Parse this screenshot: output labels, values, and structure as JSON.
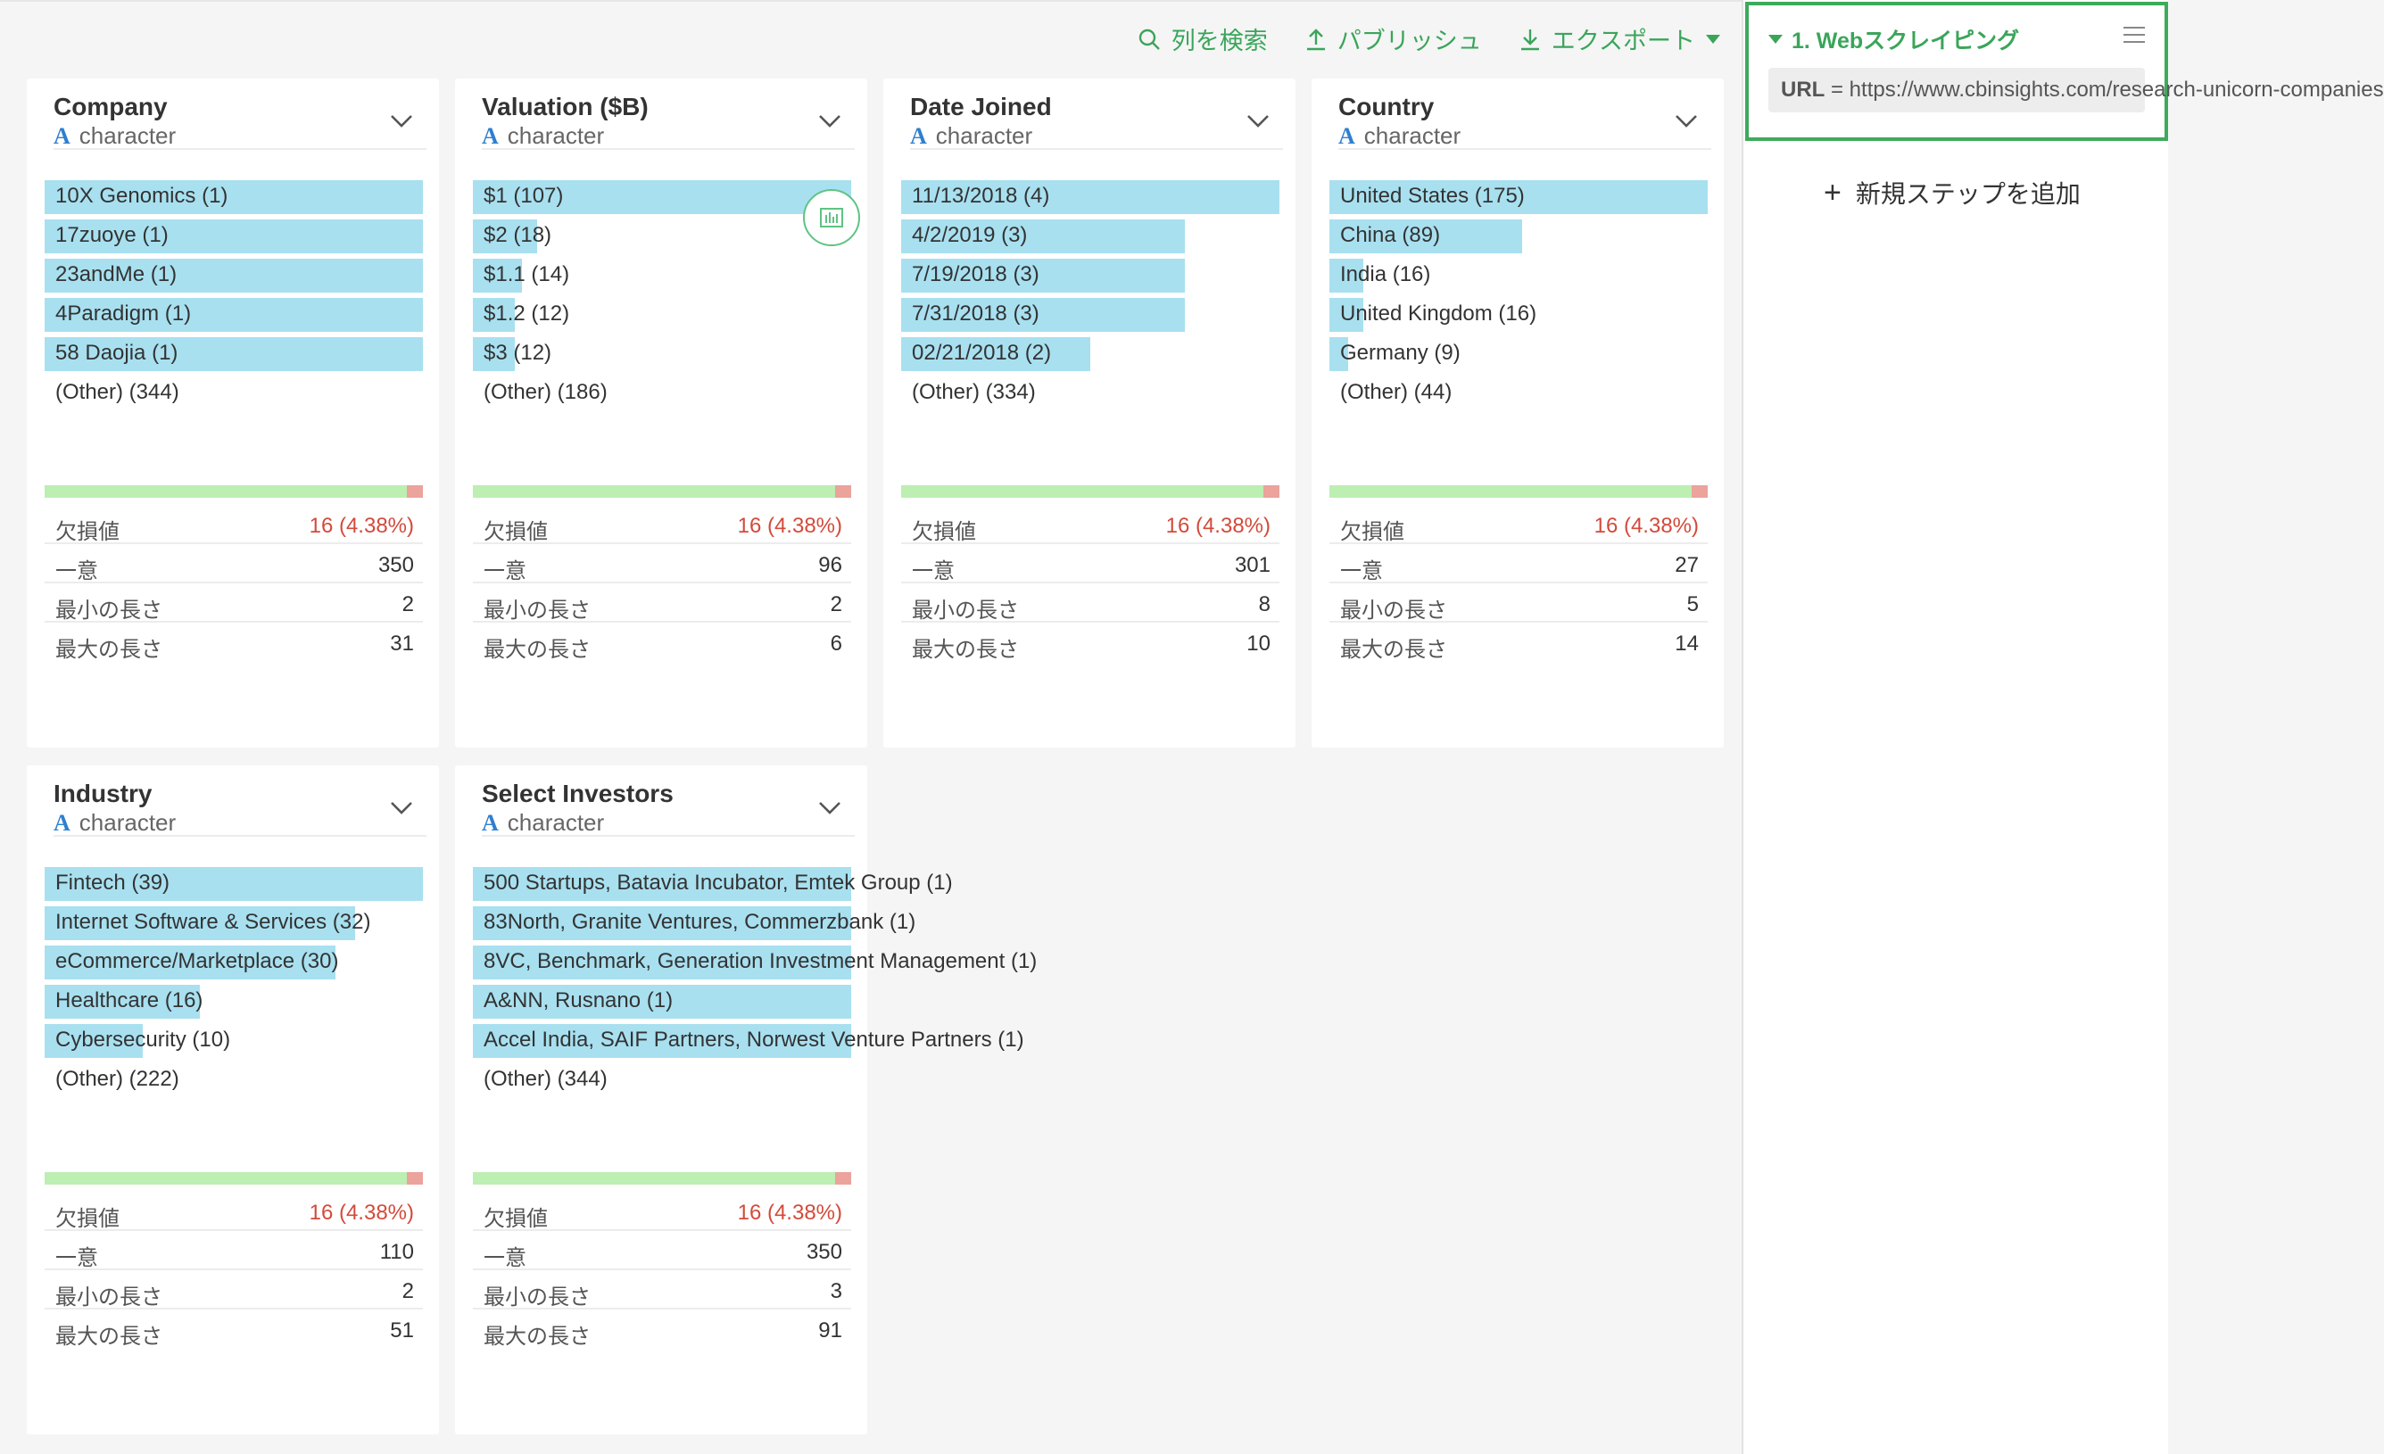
{
  "toolbar": {
    "search_label": "列を検索",
    "publish_label": "パブリッシュ",
    "export_label": "エクスポート"
  },
  "colors": {
    "accent": "#3aa55a",
    "bar": "#a8e0f0",
    "missing": "#d34a3b",
    "type_icon": "#2f7fd0"
  },
  "stat_labels": {
    "missing": "欠損値",
    "unique": "一意",
    "min_len": "最小の長さ",
    "max_len": "最大の長さ"
  },
  "columns": [
    {
      "name": "Company",
      "type_glyph": "A",
      "type": "character",
      "bars": [
        {
          "label": "10X Genomics (1)",
          "fraction": 1.0
        },
        {
          "label": "17zuoye (1)",
          "fraction": 1.0
        },
        {
          "label": "23andMe (1)",
          "fraction": 1.0
        },
        {
          "label": "4Paradigm (1)",
          "fraction": 1.0
        },
        {
          "label": "58 Daojia (1)",
          "fraction": 1.0
        }
      ],
      "other": "(Other) (344)",
      "missing": "16 (4.38%)",
      "unique": "350",
      "min_len": "2",
      "max_len": "31"
    },
    {
      "name": "Valuation ($B)",
      "type_glyph": "A",
      "type": "character",
      "bars": [
        {
          "label": "$1 (107)",
          "fraction": 1.0
        },
        {
          "label": "$2 (18)",
          "fraction": 0.17
        },
        {
          "label": "$1.1 (14)",
          "fraction": 0.13
        },
        {
          "label": "$1.2 (12)",
          "fraction": 0.11
        },
        {
          "label": "$3 (12)",
          "fraction": 0.11
        }
      ],
      "other": "(Other) (186)",
      "missing": "16 (4.38%)",
      "unique": "96",
      "min_len": "2",
      "max_len": "6"
    },
    {
      "name": "Date Joined",
      "type_glyph": "A",
      "type": "character",
      "bars": [
        {
          "label": "11/13/2018 (4)",
          "fraction": 1.0
        },
        {
          "label": "4/2/2019 (3)",
          "fraction": 0.75
        },
        {
          "label": "7/19/2018 (3)",
          "fraction": 0.75
        },
        {
          "label": "7/31/2018 (3)",
          "fraction": 0.75
        },
        {
          "label": "02/21/2018 (2)",
          "fraction": 0.5
        }
      ],
      "other": "(Other) (334)",
      "missing": "16 (4.38%)",
      "unique": "301",
      "min_len": "8",
      "max_len": "10"
    },
    {
      "name": "Country",
      "type_glyph": "A",
      "type": "character",
      "bars": [
        {
          "label": "United States (175)",
          "fraction": 1.0
        },
        {
          "label": "China (89)",
          "fraction": 0.51
        },
        {
          "label": "India (16)",
          "fraction": 0.09
        },
        {
          "label": "United Kingdom (16)",
          "fraction": 0.09
        },
        {
          "label": "Germany (9)",
          "fraction": 0.05
        }
      ],
      "other": "(Other) (44)",
      "missing": "16 (4.38%)",
      "unique": "27",
      "min_len": "5",
      "max_len": "14"
    },
    {
      "name": "Industry",
      "type_glyph": "A",
      "type": "character",
      "bars": [
        {
          "label": "Fintech (39)",
          "fraction": 1.0
        },
        {
          "label": "Internet Software & Services (32)",
          "fraction": 0.82
        },
        {
          "label": "eCommerce/Marketplace (30)",
          "fraction": 0.77
        },
        {
          "label": "Healthcare (16)",
          "fraction": 0.41
        },
        {
          "label": "Cybersecurity (10)",
          "fraction": 0.26
        }
      ],
      "other": "(Other) (222)",
      "missing": "16 (4.38%)",
      "unique": "110",
      "min_len": "2",
      "max_len": "51"
    },
    {
      "name": "Select Investors",
      "type_glyph": "A",
      "type": "character",
      "bars": [
        {
          "label": "500 Startups, Batavia Incubator, Emtek Group (1)",
          "fraction": 1.0
        },
        {
          "label": "83North, Granite Ventures, Commerzbank (1)",
          "fraction": 1.0
        },
        {
          "label": "8VC, Benchmark, Generation Investment Management (1)",
          "fraction": 1.0
        },
        {
          "label": "A&NN, Rusnano (1)",
          "fraction": 1.0
        },
        {
          "label": "Accel India, SAIF Partners, Norwest Venture Partners (1)",
          "fraction": 1.0
        }
      ],
      "other": "(Other) (344)",
      "missing": "16 (4.38%)",
      "unique": "350",
      "min_len": "3",
      "max_len": "91"
    }
  ],
  "sidebar": {
    "step_title": "1. Webスクレイピング",
    "url_key": "URL",
    "url_value": "= https://www.cbinsights.com/research-unicorn-companies",
    "add_step_label": "新規ステップを追加"
  }
}
